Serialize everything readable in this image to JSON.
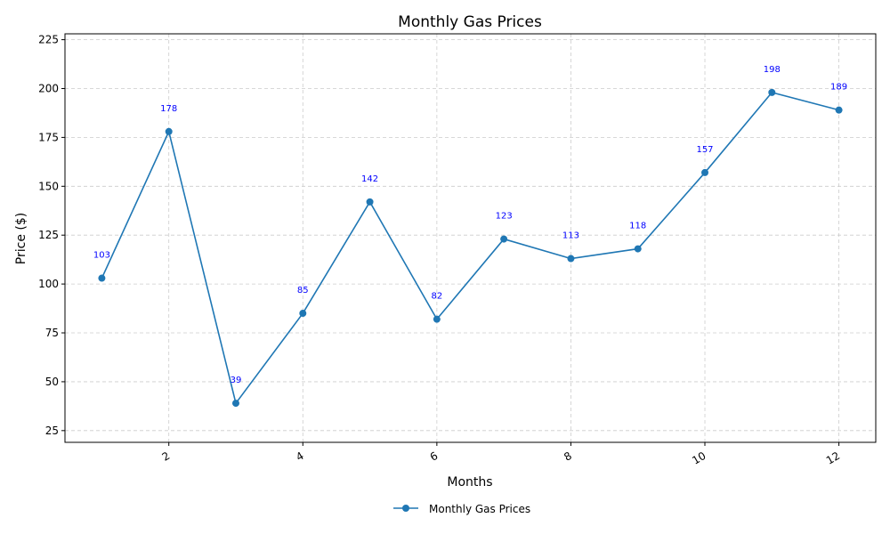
{
  "chart_data": {
    "type": "line",
    "title": "Monthly Gas Prices",
    "xlabel": "Months",
    "ylabel": "Price ($)",
    "x": [
      1,
      2,
      3,
      4,
      5,
      6,
      7,
      8,
      9,
      10,
      11,
      12
    ],
    "series": [
      {
        "name": "Monthly Gas Prices",
        "values": [
          103,
          178,
          39,
          85,
          142,
          82,
          123,
          113,
          118,
          157,
          198,
          189
        ],
        "color": "#1f77b4"
      }
    ],
    "xlim": [
      0.45,
      12.55
    ],
    "ylim": [
      19,
      228
    ],
    "x_ticks": [
      2,
      4,
      6,
      8,
      10,
      12
    ],
    "y_ticks": [
      25,
      50,
      75,
      100,
      125,
      150,
      175,
      200,
      225
    ],
    "x_tick_rotation_deg": -30,
    "grid": true,
    "data_labels": true,
    "legend": {
      "placement": "bottom-center",
      "entries": [
        "Monthly Gas Prices"
      ]
    },
    "colors": {
      "line": "#1f77b4",
      "data_label": "#0000ff",
      "grid": "#cccccc"
    }
  }
}
